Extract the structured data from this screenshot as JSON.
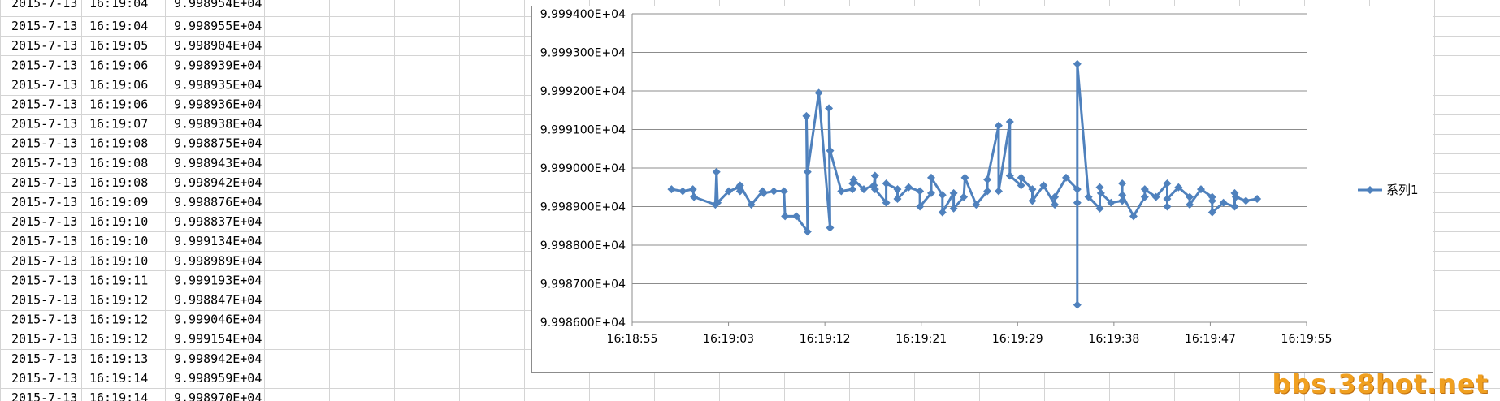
{
  "spreadsheet": {
    "top_partial_row": [
      "2015-7-13",
      "16:19:04",
      "9.998954E+04"
    ],
    "rows": [
      [
        "2015-7-13",
        "16:19:04",
        "9.998955E+04"
      ],
      [
        "2015-7-13",
        "16:19:05",
        "9.998904E+04"
      ],
      [
        "2015-7-13",
        "16:19:06",
        "9.998939E+04"
      ],
      [
        "2015-7-13",
        "16:19:06",
        "9.998935E+04"
      ],
      [
        "2015-7-13",
        "16:19:06",
        "9.998936E+04"
      ],
      [
        "2015-7-13",
        "16:19:07",
        "9.998938E+04"
      ],
      [
        "2015-7-13",
        "16:19:08",
        "9.998875E+04"
      ],
      [
        "2015-7-13",
        "16:19:08",
        "9.998943E+04"
      ],
      [
        "2015-7-13",
        "16:19:08",
        "9.998942E+04"
      ],
      [
        "2015-7-13",
        "16:19:09",
        "9.998876E+04"
      ],
      [
        "2015-7-13",
        "16:19:10",
        "9.998837E+04"
      ],
      [
        "2015-7-13",
        "16:19:10",
        "9.999134E+04"
      ],
      [
        "2015-7-13",
        "16:19:10",
        "9.998989E+04"
      ],
      [
        "2015-7-13",
        "16:19:11",
        "9.999193E+04"
      ],
      [
        "2015-7-13",
        "16:19:12",
        "9.998847E+04"
      ],
      [
        "2015-7-13",
        "16:19:12",
        "9.999046E+04"
      ],
      [
        "2015-7-13",
        "16:19:12",
        "9.999154E+04"
      ],
      [
        "2015-7-13",
        "16:19:13",
        "9.998942E+04"
      ],
      [
        "2015-7-13",
        "16:19:14",
        "9.998959E+04"
      ],
      [
        "2015-7-13",
        "16:19:14",
        "9.998970E+04"
      ]
    ]
  },
  "chart_data": {
    "type": "line",
    "title": "",
    "xlabel": "",
    "ylabel": "",
    "x_ticks": [
      "16:18:55",
      "16:19:03",
      "16:19:12",
      "16:19:21",
      "16:19:29",
      "16:19:38",
      "16:19:47",
      "16:19:55"
    ],
    "y_ticks": [
      "9.998600E+04",
      "9.998700E+04",
      "9.998800E+04",
      "9.998900E+04",
      "9.999000E+04",
      "9.999100E+04",
      "9.999200E+04",
      "9.999300E+04",
      "9.999400E+04"
    ],
    "xlim_seconds": [
      55,
      115
    ],
    "ylim": [
      99986.0,
      99994.0
    ],
    "grid": "horizontal",
    "legend": "right",
    "series": [
      {
        "name": "系列1",
        "color": "#4f81bd",
        "marker": "diamond",
        "points": [
          [
            58.5,
            99989.45
          ],
          [
            59.5,
            99989.4
          ],
          [
            60.4,
            99989.45
          ],
          [
            60.5,
            99989.25
          ],
          [
            62.4,
            99989.05
          ],
          [
            62.5,
            99989.9
          ],
          [
            62.6,
            99989.1
          ],
          [
            63.6,
            99989.4
          ],
          [
            64.5,
            99989.5
          ],
          [
            64.6,
            99989.4
          ],
          [
            64.6,
            99989.55
          ],
          [
            65.6,
            99989.05
          ],
          [
            66.6,
            99989.4
          ],
          [
            66.7,
            99989.35
          ],
          [
            67.6,
            99989.4
          ],
          [
            68.5,
            99989.4
          ],
          [
            68.6,
            99988.75
          ],
          [
            69.6,
            99988.75
          ],
          [
            70.6,
            99988.35
          ],
          [
            70.5,
            99991.35
          ],
          [
            70.6,
            99989.9
          ],
          [
            71.6,
            99991.95
          ],
          [
            72.6,
            99988.45
          ],
          [
            72.5,
            99991.55
          ],
          [
            72.6,
            99990.45
          ],
          [
            73.6,
            99989.4
          ],
          [
            74.6,
            99989.45
          ],
          [
            74.6,
            99989.6
          ],
          [
            74.7,
            99989.7
          ],
          [
            75.6,
            99989.45
          ],
          [
            76.5,
            99989.55
          ],
          [
            76.6,
            99989.8
          ],
          [
            76.6,
            99989.45
          ],
          [
            77.6,
            99989.1
          ],
          [
            77.6,
            99989.6
          ],
          [
            78.6,
            99989.45
          ],
          [
            78.6,
            99989.2
          ],
          [
            79.6,
            99989.5
          ],
          [
            80.6,
            99989.4
          ],
          [
            80.6,
            99989.0
          ],
          [
            81.6,
            99989.35
          ],
          [
            81.6,
            99989.75
          ],
          [
            82.6,
            99989.3
          ],
          [
            82.6,
            99988.85
          ],
          [
            83.6,
            99989.35
          ],
          [
            83.6,
            99988.95
          ],
          [
            84.5,
            99989.25
          ],
          [
            84.6,
            99989.75
          ],
          [
            85.6,
            99989.05
          ],
          [
            86.6,
            99989.4
          ],
          [
            86.6,
            99989.7
          ],
          [
            87.6,
            99991.1
          ],
          [
            87.6,
            99989.4
          ],
          [
            88.6,
            99991.2
          ],
          [
            88.6,
            99989.8
          ],
          [
            89.6,
            99989.55
          ],
          [
            89.6,
            99989.75
          ],
          [
            90.6,
            99989.45
          ],
          [
            90.6,
            99989.15
          ],
          [
            91.6,
            99989.55
          ],
          [
            92.6,
            99989.05
          ],
          [
            92.6,
            99989.25
          ],
          [
            93.6,
            99989.75
          ],
          [
            94.6,
            99989.45
          ],
          [
            94.6,
            99989.1
          ],
          [
            94.6,
            99986.45
          ],
          [
            94.6,
            99992.7
          ],
          [
            95.6,
            99989.25
          ],
          [
            96.6,
            99988.95
          ],
          [
            96.6,
            99989.5
          ],
          [
            96.7,
            99989.35
          ],
          [
            97.6,
            99989.1
          ],
          [
            98.6,
            99989.15
          ],
          [
            98.6,
            99989.6
          ],
          [
            98.6,
            99989.3
          ],
          [
            99.6,
            99988.75
          ],
          [
            100.6,
            99989.25
          ],
          [
            100.6,
            99989.45
          ],
          [
            101.6,
            99989.25
          ],
          [
            102.6,
            99989.6
          ],
          [
            102.6,
            99989.0
          ],
          [
            102.6,
            99989.2
          ],
          [
            103.6,
            99989.5
          ],
          [
            104.6,
            99989.25
          ],
          [
            104.6,
            99989.05
          ],
          [
            105.6,
            99989.45
          ],
          [
            106.6,
            99989.25
          ],
          [
            106.6,
            99989.15
          ],
          [
            106.6,
            99988.85
          ],
          [
            107.6,
            99989.1
          ],
          [
            108.6,
            99989.0
          ],
          [
            108.6,
            99989.35
          ],
          [
            108.7,
            99989.25
          ],
          [
            109.6,
            99989.15
          ],
          [
            110.6,
            99989.2
          ]
        ]
      }
    ]
  },
  "watermark": "bbs.38hot.net"
}
